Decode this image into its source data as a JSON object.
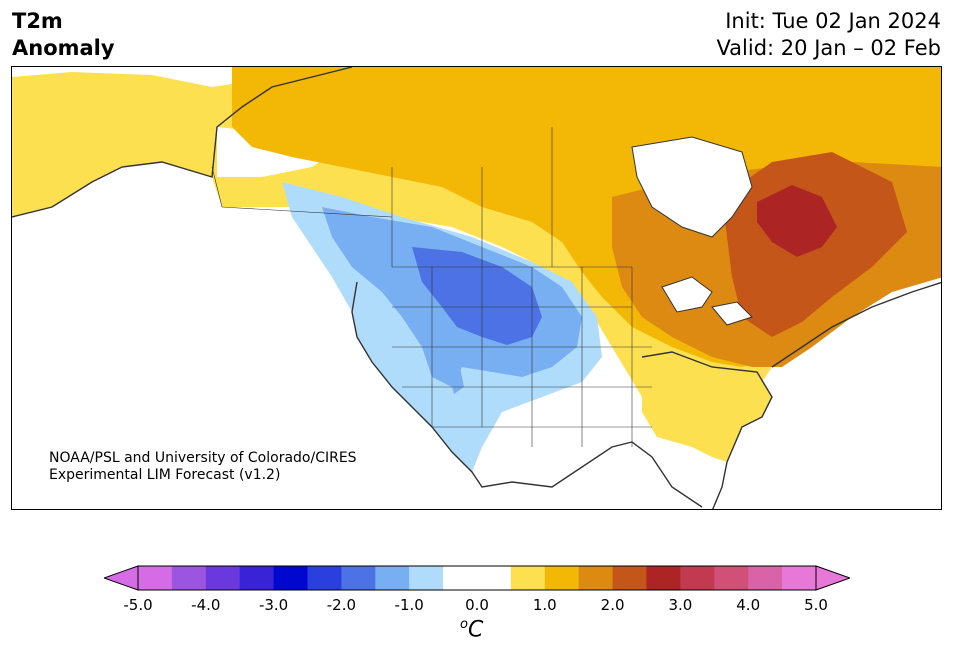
{
  "header": {
    "title_line1": "T2m",
    "title_line2": "Anomaly",
    "init": "Init: Tue 02 Jan 2024",
    "valid": "Valid: 20 Jan – 02 Feb"
  },
  "map": {
    "credit_line1": "NOAA/PSL and University of Colorado/CIRES",
    "credit_line2": "Experimental LIM Forecast (v1.2)",
    "colors": {
      "ocean": "#ffffff",
      "coastline": "#333333"
    }
  },
  "colorbar": {
    "unit_base": "C",
    "unit_sup": "o",
    "tick_labels": [
      "-5.0",
      "-4.0",
      "-3.0",
      "-2.0",
      "-1.0",
      "0.0",
      "1.0",
      "2.0",
      "3.0",
      "4.0",
      "5.0"
    ],
    "colors": [
      "#d66be6",
      "#9b55e0",
      "#6a38dc",
      "#3a22d6",
      "#0008d0",
      "#2a3fde",
      "#4c72e6",
      "#78aef2",
      "#b0dcfb",
      "#ffffff",
      "#ffffff",
      "#fde050",
      "#f3b705",
      "#dd8a12",
      "#c4561a",
      "#ad2424",
      "#c13a4f",
      "#d05078",
      "#da62a6",
      "#e878d8"
    ]
  }
}
